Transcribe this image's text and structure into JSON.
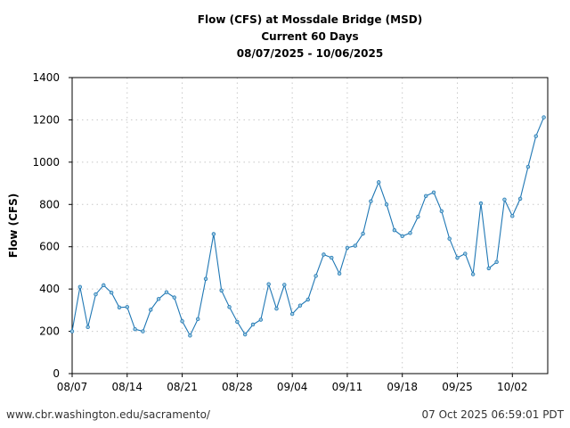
{
  "chart_data": {
    "type": "line",
    "title": [
      "Flow (CFS) at Mossdale Bridge (MSD)",
      "Current 60 Days",
      "08/07/2025 - 10/06/2025"
    ],
    "xlabel": "",
    "ylabel": "Flow (CFS)",
    "ylim": [
      0,
      1400
    ],
    "yticks": [
      0,
      200,
      400,
      600,
      800,
      1000,
      1200,
      1400
    ],
    "xtick_labels": [
      "08/07",
      "08/14",
      "08/21",
      "08/28",
      "09/04",
      "09/11",
      "09/18",
      "09/25",
      "10/02"
    ],
    "xtick_day_index": [
      0,
      7,
      14,
      21,
      28,
      35,
      42,
      49,
      56
    ],
    "x_start": "08/07/2025",
    "x_days": 60.5,
    "grid": true,
    "series": [
      {
        "name": "Flow (CFS)",
        "color": "#1f77b4",
        "values": [
          200,
          410,
          220,
          375,
          418,
          383,
          313,
          315,
          210,
          200,
          302,
          353,
          385,
          360,
          248,
          180,
          258,
          448,
          660,
          393,
          315,
          245,
          185,
          232,
          255,
          423,
          307,
          420,
          282,
          322,
          350,
          462,
          563,
          548,
          473,
          595,
          605,
          662,
          815,
          905,
          800,
          678,
          650,
          665,
          742,
          840,
          857,
          768,
          638,
          548,
          567,
          470,
          805,
          498,
          528,
          823,
          745,
          827,
          978,
          1123,
          1212
        ]
      }
    ]
  },
  "footer": {
    "source_url": "www.cbr.washington.edu/sacramento/",
    "timestamp": "07 Oct 2025 06:59:01 PDT"
  }
}
